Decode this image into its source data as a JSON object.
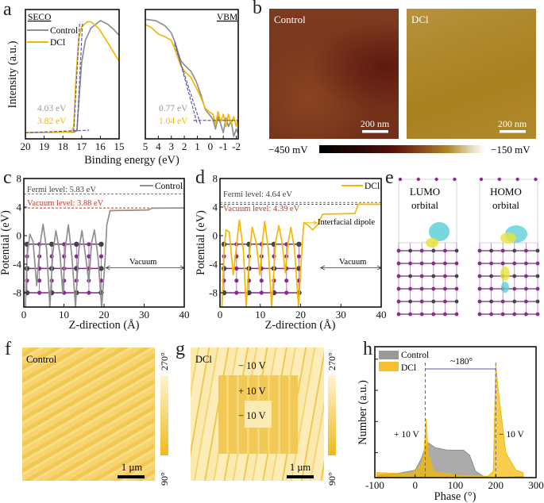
{
  "panel_labels": {
    "a": "a",
    "b": "b",
    "c": "c",
    "d": "d",
    "e": "e",
    "f": "f",
    "g": "g",
    "h": "h"
  },
  "colors": {
    "control": "#8f8f8f",
    "dcl": "#f5b800",
    "fit": "#5a5aa8",
    "vacuum_level": "#c0392b",
    "fermi_level": "#777777"
  },
  "chart_data": [
    {
      "type": "line",
      "title": "SECO",
      "xlabel": "Binding energy (eV)",
      "ylabel": "Intensity (a.u.)",
      "xlim": [
        20,
        15
      ],
      "ylim": [
        0,
        1.05
      ],
      "xticks": [
        20,
        19,
        18,
        17,
        16,
        15
      ],
      "yticks": [],
      "grid": false,
      "legend": "top-left",
      "series": [
        {
          "name": "Control",
          "color": "#8f8f8f",
          "points": [
            [
              20,
              0.05
            ],
            [
              17.4,
              0.055
            ],
            [
              17.25,
              0.07
            ],
            [
              17.15,
              0.3
            ],
            [
              17.0,
              0.62
            ],
            [
              16.8,
              0.8
            ],
            [
              16.5,
              0.9
            ],
            [
              16.0,
              0.96
            ],
            [
              15.6,
              0.93
            ],
            [
              15.3,
              0.89
            ],
            [
              15,
              0.84
            ]
          ]
        },
        {
          "name": "DCl",
          "color": "#f5b800",
          "points": [
            [
              20,
              0.05
            ],
            [
              17.55,
              0.055
            ],
            [
              17.42,
              0.1
            ],
            [
              17.3,
              0.5
            ],
            [
              17.15,
              0.82
            ],
            [
              17.0,
              0.91
            ],
            [
              16.7,
              0.95
            ],
            [
              16.5,
              0.95
            ],
            [
              16.1,
              0.9
            ],
            [
              15.6,
              0.78
            ],
            [
              15,
              0.63
            ]
          ]
        }
      ],
      "fit_lines": [
        [
          [
            17.25,
            0.06
          ],
          [
            16.95,
            0.95
          ]
        ],
        [
          [
            17.42,
            0.06
          ],
          [
            17.1,
            0.95
          ]
        ],
        [
          [
            20,
            0.05
          ],
          [
            16.6,
            0.07
          ]
        ]
      ],
      "annotations": [
        {
          "text": "4.03 eV",
          "color": "#9a9a9a"
        },
        {
          "text": "3.82 eV",
          "color": "#f5b800"
        }
      ]
    },
    {
      "type": "line",
      "title": "VBM",
      "xlabel": "",
      "ylabel": "",
      "xlim": [
        5,
        -2.15
      ],
      "ylim": [
        0,
        1.05
      ],
      "xticks": [
        5,
        4,
        3,
        2,
        1,
        0,
        -1,
        -2
      ],
      "yticks": [],
      "grid": false,
      "series": [
        {
          "name": "Control",
          "color": "#8f8f8f",
          "points": [
            [
              5,
              0.97
            ],
            [
              4.2,
              0.96
            ],
            [
              3.5,
              0.92
            ],
            [
              3,
              0.86
            ],
            [
              2.7,
              0.78
            ],
            [
              2.3,
              0.64
            ],
            [
              2,
              0.6
            ],
            [
              1.5,
              0.55
            ],
            [
              1.1,
              0.47
            ],
            [
              0.7,
              0.35
            ],
            [
              0.4,
              0.24
            ],
            [
              0.1,
              0.2
            ],
            [
              -0.2,
              0.16
            ],
            [
              -0.4,
              0.08
            ],
            [
              -0.6,
              0.18
            ],
            [
              -0.8,
              0.12
            ],
            [
              -1.0,
              0.05
            ],
            [
              -1.2,
              0.17
            ],
            [
              -1.4,
              0.1
            ],
            [
              -1.6,
              0.15
            ],
            [
              -1.8,
              0.02
            ],
            [
              -2,
              0.08
            ],
            [
              -2.1,
              0.05
            ]
          ]
        },
        {
          "name": "DCl",
          "color": "#f5b800",
          "points": [
            [
              5,
              0.93
            ],
            [
              4.5,
              0.9
            ],
            [
              4,
              0.85
            ],
            [
              3.5,
              0.83
            ],
            [
              3,
              0.8
            ],
            [
              2.7,
              0.72
            ],
            [
              2.3,
              0.6
            ],
            [
              2,
              0.55
            ],
            [
              1.5,
              0.5
            ],
            [
              1.1,
              0.42
            ],
            [
              0.7,
              0.33
            ],
            [
              0.4,
              0.25
            ],
            [
              0.1,
              0.22
            ],
            [
              -0.2,
              0.2
            ],
            [
              -0.4,
              0.12
            ],
            [
              -0.6,
              0.22
            ],
            [
              -0.8,
              0.14
            ],
            [
              -1.0,
              0.2
            ],
            [
              -1.2,
              0.1
            ],
            [
              -1.4,
              0.2
            ],
            [
              -1.6,
              0.12
            ],
            [
              -1.8,
              0.18
            ],
            [
              -2,
              0.1
            ],
            [
              -2.1,
              0.15
            ]
          ]
        }
      ],
      "fit_lines": [
        [
          [
            2.75,
            0.77
          ],
          [
            0.75,
            0.12
          ]
        ],
        [
          [
            2.75,
            0.79
          ],
          [
            1.0,
            0.12
          ]
        ],
        [
          [
            1.3,
            0.15
          ],
          [
            -2.15,
            0.15
          ]
        ]
      ],
      "annotations": [
        {
          "text": "0.77 eV",
          "color": "#9a9a9a"
        },
        {
          "text": "1.04 eV",
          "color": "#f5b800"
        }
      ]
    },
    {
      "type": "line",
      "title": "",
      "xlabel": "Z-direction (Å)",
      "ylabel": "Potential (eV)",
      "xlim": [
        0,
        40
      ],
      "ylim": [
        -10,
        8
      ],
      "xticks": [
        0,
        10,
        20,
        30,
        40
      ],
      "yticks": [
        -8,
        -4,
        0,
        4,
        8
      ],
      "grid": false,
      "legend": "top-right",
      "series": [
        {
          "name": "Control",
          "color": "#8f8f8f",
          "points": [
            [
              0.4,
              -10
            ],
            [
              0.8,
              -3
            ],
            [
              1.5,
              0.2
            ],
            [
              2.3,
              -0.8
            ],
            [
              3.2,
              -7
            ],
            [
              4,
              -1.5
            ],
            [
              4.8,
              1.6
            ],
            [
              5.7,
              -2
            ],
            [
              6.5,
              -10
            ],
            [
              7.2,
              -2.5
            ],
            [
              8,
              0.7
            ],
            [
              9,
              -2.5
            ],
            [
              9.7,
              -8
            ],
            [
              10.4,
              -1.5
            ],
            [
              11.1,
              1.5
            ],
            [
              12,
              -3
            ],
            [
              12.9,
              -10
            ],
            [
              13.7,
              -2
            ],
            [
              14.5,
              0.7
            ],
            [
              15.3,
              -2.5
            ],
            [
              16.2,
              -6.5
            ],
            [
              16.9,
              -1
            ],
            [
              17.6,
              0.8
            ],
            [
              18.5,
              -3
            ],
            [
              19.4,
              -10
            ],
            [
              20.2,
              -4
            ],
            [
              20.7,
              1.5
            ],
            [
              21.5,
              3.5
            ],
            [
              31,
              3.6
            ],
            [
              32,
              3.85
            ],
            [
              40,
              3.88
            ]
          ]
        }
      ],
      "reference_lines": [
        {
          "label": "Fermi level: 5.83 eV",
          "value": 5.83,
          "color": "#777777"
        },
        {
          "label": "Vacuum level: 3.88 eV",
          "value": 3.88,
          "color": "#c0392b"
        }
      ],
      "annotations": [
        {
          "text": "Vacuum",
          "from": 20.5,
          "to": 40,
          "y": -4.5
        }
      ]
    },
    {
      "type": "line",
      "title": "",
      "xlabel": "Z-direction (Å)",
      "ylabel": "Potential (eV)",
      "xlim": [
        0,
        40
      ],
      "ylim": [
        -10,
        8
      ],
      "xticks": [
        0,
        10,
        20,
        30,
        40
      ],
      "yticks": [
        -8,
        -4,
        0,
        4,
        8
      ],
      "grid": false,
      "legend": "top-right",
      "series": [
        {
          "name": "DCl",
          "color": "#f5b800",
          "points": [
            [
              0.5,
              -10
            ],
            [
              1,
              -2
            ],
            [
              1.5,
              0.8
            ],
            [
              2.3,
              0.5
            ],
            [
              3.3,
              -5.5
            ],
            [
              4.2,
              -1
            ],
            [
              4.8,
              2.2
            ],
            [
              5.8,
              -2
            ],
            [
              6.5,
              -10
            ],
            [
              7.4,
              -2
            ],
            [
              8,
              1.2
            ],
            [
              9,
              -1
            ],
            [
              9.9,
              -5.5
            ],
            [
              10.5,
              -1
            ],
            [
              11.1,
              2
            ],
            [
              12,
              -2
            ],
            [
              12.8,
              -10
            ],
            [
              13.8,
              -1
            ],
            [
              14.6,
              1.4
            ],
            [
              15.4,
              -1
            ],
            [
              16.2,
              -5.2
            ],
            [
              16.9,
              -1
            ],
            [
              17.6,
              1.2
            ],
            [
              18.5,
              -2
            ],
            [
              19.5,
              -10
            ],
            [
              20.2,
              -3
            ],
            [
              20.8,
              1.8
            ],
            [
              21.8,
              1.5
            ],
            [
              23,
              0.8
            ],
            [
              24.2,
              1.5
            ],
            [
              25.5,
              3.0
            ],
            [
              33.5,
              3.1
            ],
            [
              34.3,
              4.4
            ],
            [
              40,
              4.39
            ]
          ]
        }
      ],
      "reference_lines": [
        {
          "label": "Fermi level: 4.64 eV",
          "value": 4.64,
          "color": "#777777"
        },
        {
          "label": "Vacuum level: 4.39 eV",
          "value": 4.39,
          "color": "#c0392b"
        }
      ],
      "annotations": [
        {
          "text": "Vacuum",
          "from": 25,
          "to": 40,
          "y": -4.5
        },
        {
          "text": "Interfacial dipole",
          "from": 21,
          "to": 24,
          "y": 1.8
        }
      ]
    },
    {
      "type": "area",
      "title": "",
      "xlabel": "Phase (°)",
      "ylabel": "Number (a.u.)",
      "xlim": [
        -100,
        300
      ],
      "ylim": [
        0,
        1.05
      ],
      "xticks": [
        -100,
        0,
        100,
        200,
        300
      ],
      "yticks": [
        0.2,
        0.45,
        0.7,
        0.95
      ],
      "grid": false,
      "legend": "top-left",
      "series": [
        {
          "name": "Control",
          "color": "#8f8f8f",
          "points": [
            [
              -95,
              0.02
            ],
            [
              -50,
              0.03
            ],
            [
              0,
              0.06
            ],
            [
              15,
              0.15
            ],
            [
              25,
              0.24
            ],
            [
              32,
              0.28
            ],
            [
              50,
              0.24
            ],
            [
              80,
              0.22
            ],
            [
              120,
              0.22
            ],
            [
              135,
              0.18
            ],
            [
              150,
              0.05
            ],
            [
              170,
              0.01
            ],
            [
              200,
              0.0
            ],
            [
              268,
              0.01
            ]
          ]
        },
        {
          "name": "DCl",
          "color": "#f5b800",
          "points": [
            [
              -95,
              0.04
            ],
            [
              -20,
              0.03
            ],
            [
              0,
              0.05
            ],
            [
              15,
              0.1
            ],
            [
              22,
              0.2
            ],
            [
              27,
              0.47
            ],
            [
              32,
              0.2
            ],
            [
              45,
              0.05
            ],
            [
              100,
              0.02
            ],
            [
              180,
              0.01
            ],
            [
              194,
              0.05
            ],
            [
              200,
              0.9
            ],
            [
              208,
              0.65
            ],
            [
              225,
              0.2
            ],
            [
              250,
              0.06
            ],
            [
              268,
              0.04
            ]
          ]
        }
      ],
      "markers": [
        25,
        200
      ],
      "annotations": [
        {
          "text": "~180°"
        },
        {
          "text": "+ 10 V"
        },
        {
          "text": "− 10 V"
        }
      ]
    }
  ],
  "panel_b": {
    "images": [
      {
        "label": "Control",
        "scale_bar": "200 nm"
      },
      {
        "label": "DCl",
        "scale_bar": "200 nm"
      }
    ],
    "colorbar": {
      "min_label": "−450 mV",
      "max_label": "−150 mV",
      "min": -450,
      "max": -150,
      "unit": "mV"
    }
  },
  "panel_e": {
    "left": {
      "line1": "LUMO",
      "line2": "orbital"
    },
    "right": {
      "line1": "HOMO",
      "line2": "orbital"
    }
  },
  "panel_f": {
    "label": "Control",
    "scale_bar": "1 µm",
    "colorbar_max": "270°",
    "colorbar_min": "90°"
  },
  "panel_g": {
    "label": "DCl",
    "scale_bar": "1 µm",
    "outer": "− 10 V",
    "middle": "+ 10 V",
    "inner": "− 10 V",
    "colorbar_max": "270°",
    "colorbar_min": "90°"
  }
}
